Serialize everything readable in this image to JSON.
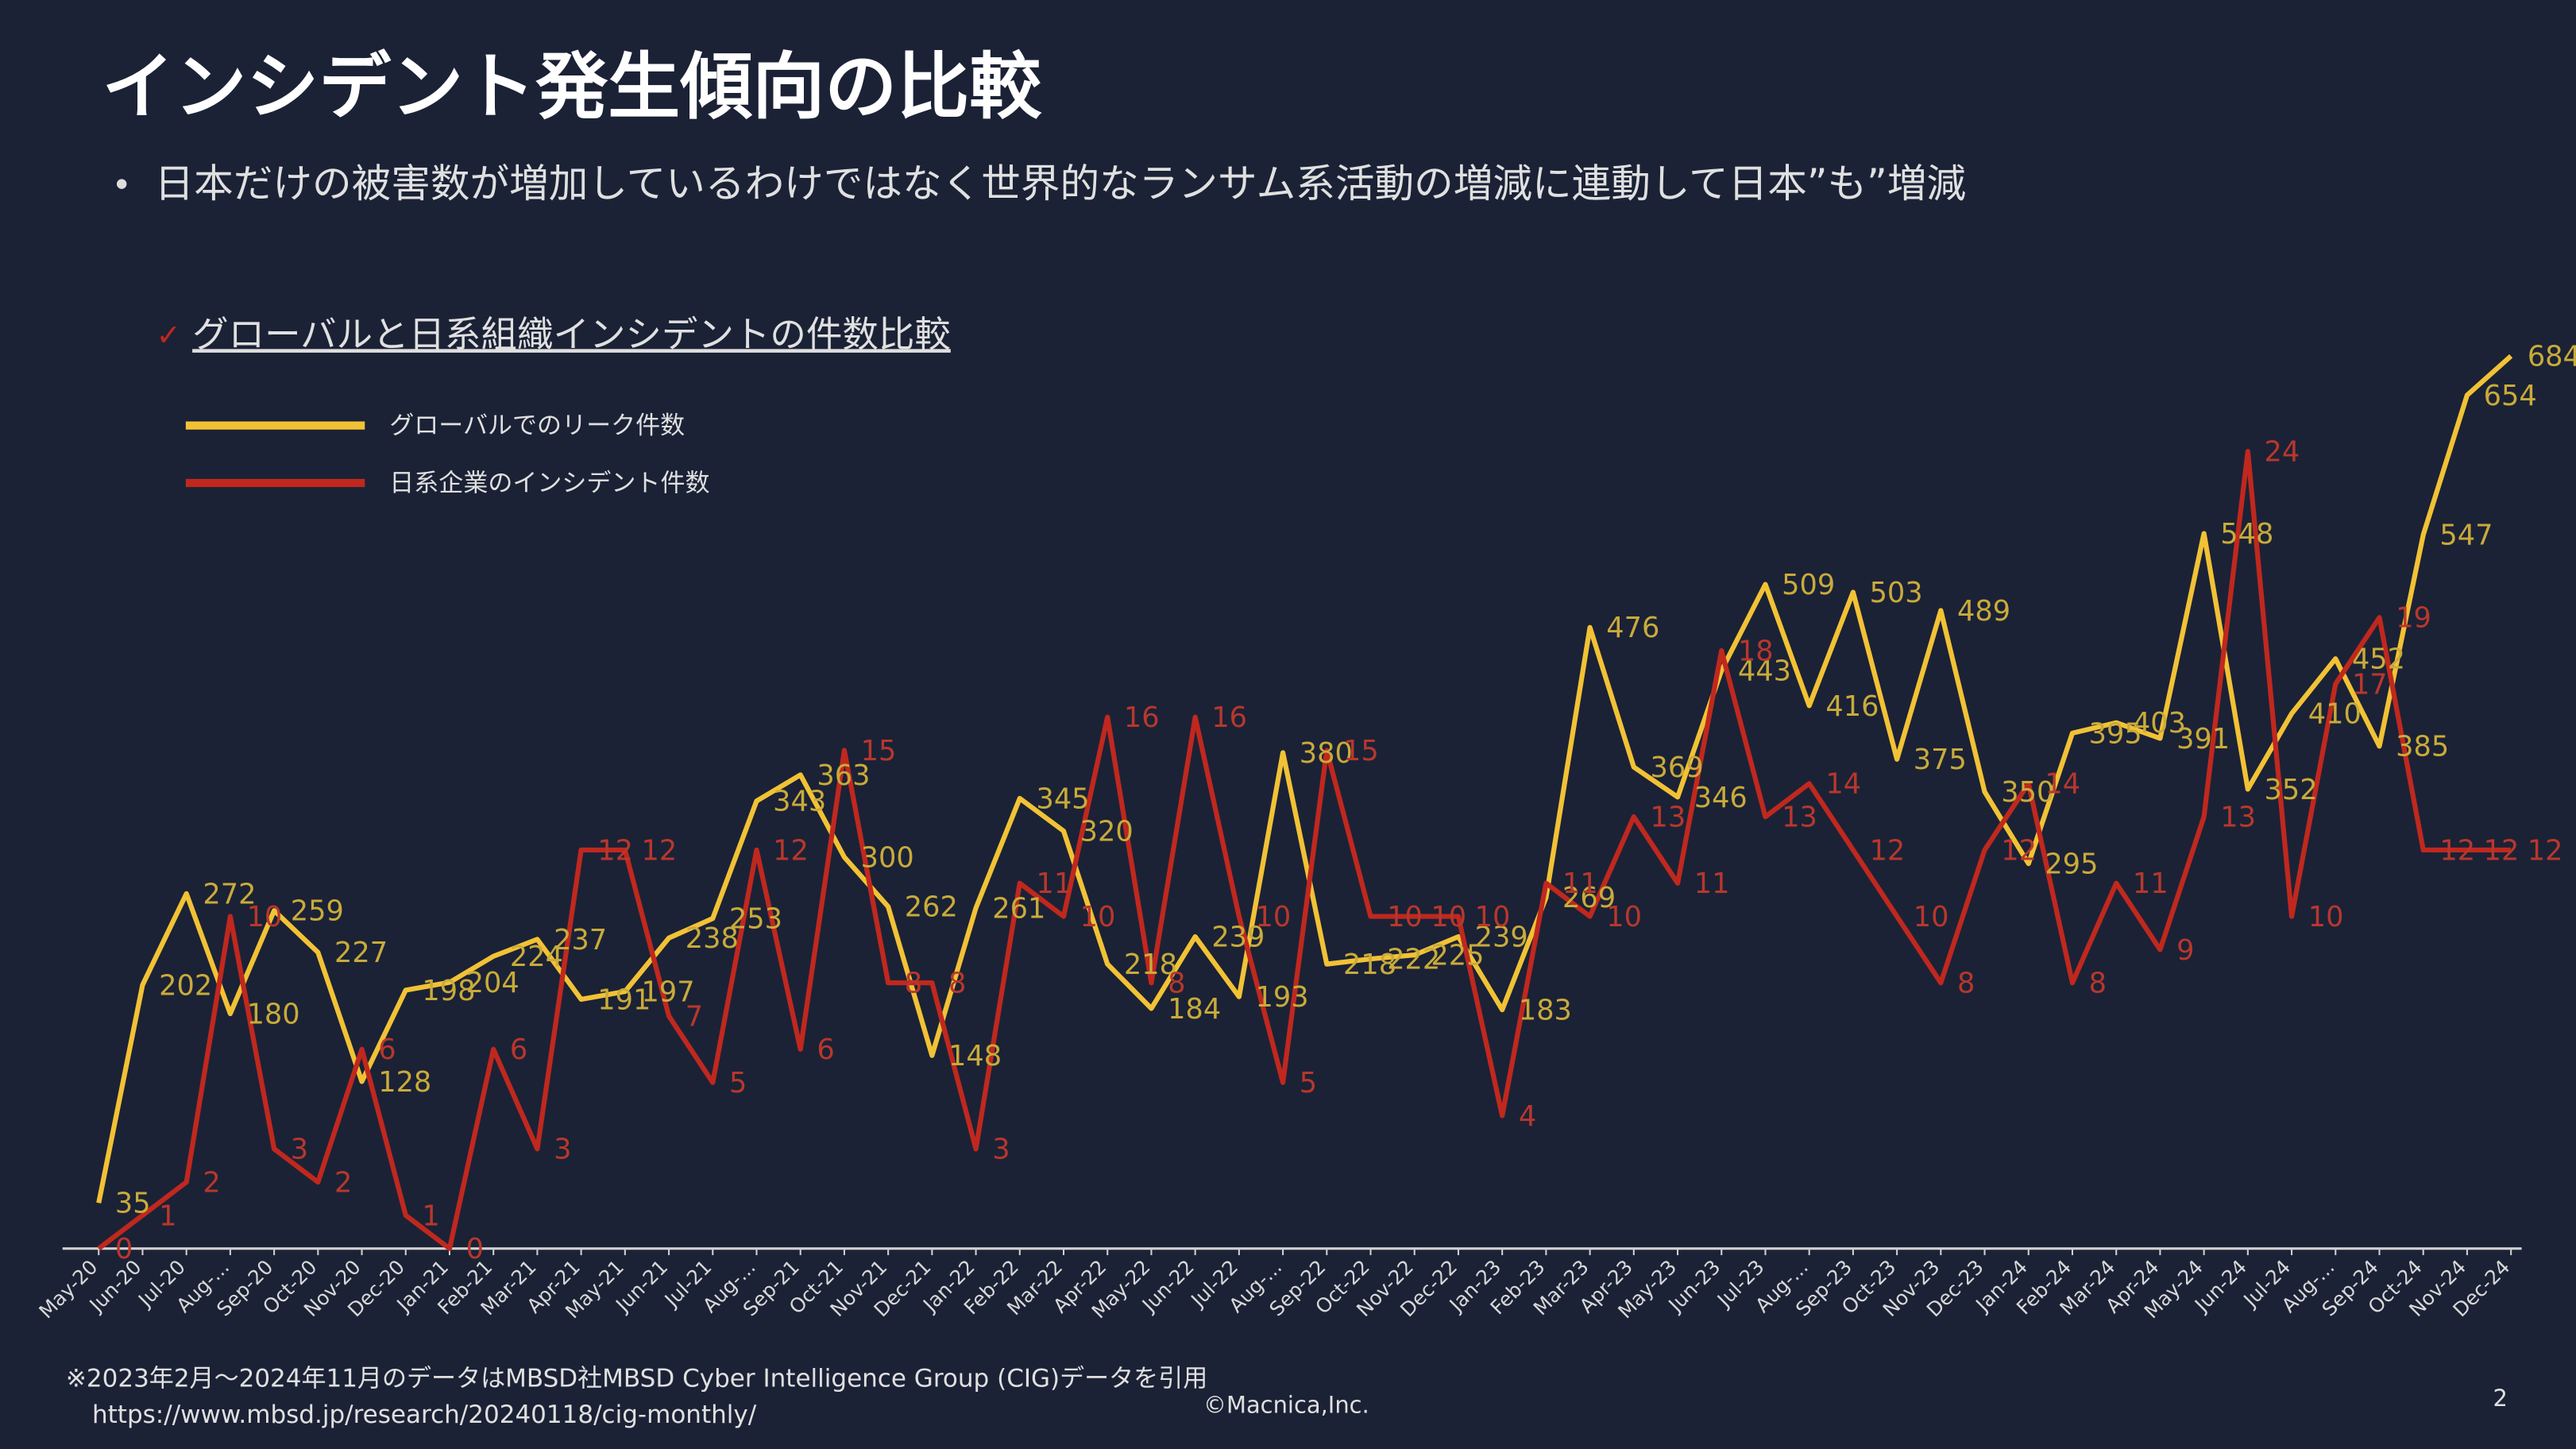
{
  "chart_data": {
    "type": "line",
    "title": "インシデント発生傾向の比較",
    "subtitle": "日本だけの被害数が増加しているわけではなく世界的なランサム系活動の増減に連動して日本”も”増減",
    "chart_title": "グローバルと日系組織インシデントの件数比較",
    "categories": [
      "May-20",
      "Jun-20",
      "Jul-20",
      "Aug-...",
      "Sep-20",
      "Oct-20",
      "Nov-20",
      "Dec-20",
      "Jan-21",
      "Feb-21",
      "Mar-21",
      "Apr-21",
      "May-21",
      "Jun-21",
      "Jul-21",
      "Aug-...",
      "Sep-21",
      "Oct-21",
      "Nov-21",
      "Dec-21",
      "Jan-22",
      "Feb-22",
      "Mar-22",
      "Apr-22",
      "May-22",
      "Jun-22",
      "Jul-22",
      "Aug-...",
      "Sep-22",
      "Oct-22",
      "Nov-22",
      "Dec-22",
      "Jan-23",
      "Feb-23",
      "Mar-23",
      "Apr-23",
      "May-23",
      "Jun-23",
      "Jul-23",
      "Aug-...",
      "Sep-23",
      "Oct-23",
      "Nov-23",
      "Dec-23",
      "Jan-24",
      "Feb-24",
      "Mar-24",
      "Apr-24",
      "May-24",
      "Jun-24",
      "Jul-24",
      "Aug-...",
      "Sep-24",
      "Oct-24",
      "Nov-24",
      "Dec-24"
    ],
    "series": [
      {
        "name": "グローバルでのリーク件数",
        "color": "#f2c235",
        "values": [
          35,
          202,
          272,
          180,
          259,
          227,
          128,
          198,
          204,
          224,
          237,
          191,
          197,
          238,
          253,
          343,
          363,
          300,
          262,
          148,
          261,
          345,
          320,
          218,
          184,
          239,
          193,
          380,
          218,
          222,
          225,
          239,
          183,
          269,
          476,
          369,
          346,
          443,
          509,
          416,
          503,
          375,
          489,
          350,
          295,
          395,
          403,
          391,
          548,
          352,
          410,
          452,
          385,
          547,
          654,
          684
        ]
      },
      {
        "name": "日系企業のインシデント件数",
        "color": "#c0281e",
        "axis": "y2",
        "values": [
          0,
          1,
          2,
          10,
          3,
          2,
          6,
          1,
          0,
          6,
          3,
          12,
          12,
          7,
          5,
          12,
          6,
          15,
          8,
          8,
          3,
          11,
          10,
          16,
          8,
          16,
          10,
          5,
          15,
          10,
          10,
          10,
          4,
          11,
          10,
          13,
          11,
          18,
          13,
          14,
          12,
          10,
          8,
          12,
          14,
          8,
          11,
          9,
          13,
          24,
          10,
          17,
          19,
          12,
          12,
          12
        ]
      }
    ],
    "ylim": [
      0,
      700
    ],
    "y2lim": [
      0,
      27.5
    ]
  },
  "slide": {
    "footnote": "※2023年2月～2024年11月のデータはMBSD社MBSD Cyber Intelligence Group (CIG)データを引用",
    "source_url": "https://www.mbsd.jp/research/20240118/cig-monthly/",
    "copyright": "©Macnica,Inc.",
    "page_number": "2"
  }
}
